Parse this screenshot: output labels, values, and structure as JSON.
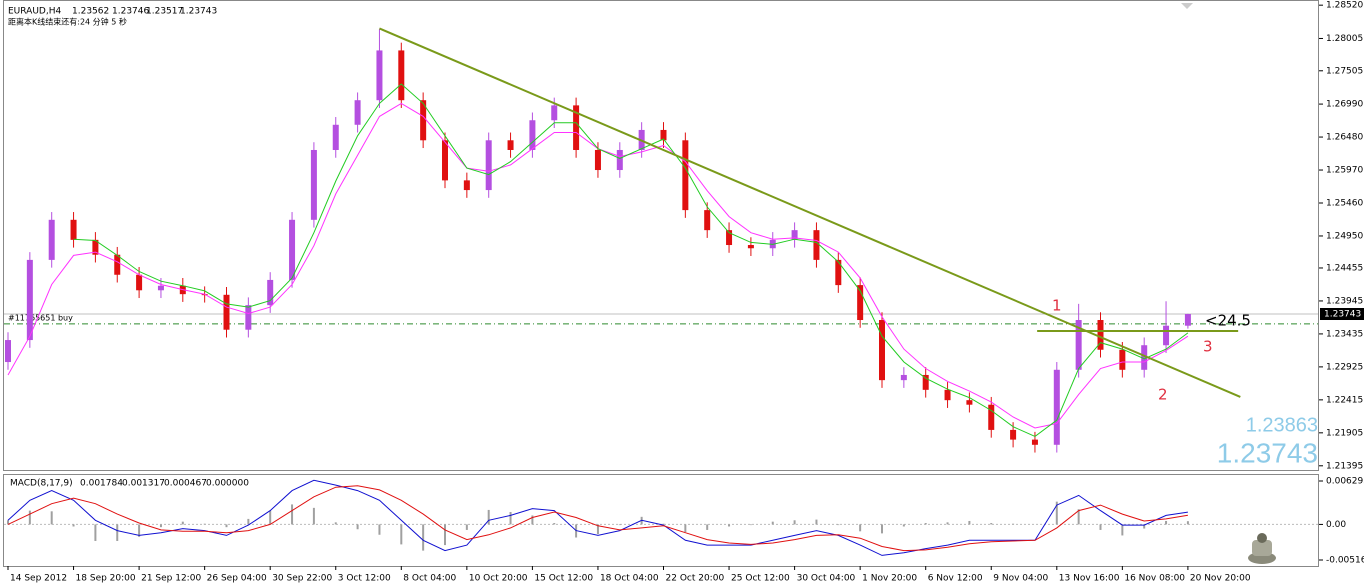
{
  "chart_data": [
    {
      "type": "candlestick",
      "title": "EURAUD,H4",
      "countdown": "距离本K线结束还有:24 分钟 5 秒",
      "open": [
        1.23,
        1.2334,
        1.2458,
        1.252,
        1.2489,
        1.2466,
        1.2435,
        1.2411,
        1.2418,
        1.2405,
        1.2404,
        1.235,
        1.2388,
        1.2427,
        1.252,
        1.2628,
        1.2667,
        1.2705,
        1.2782,
        1.2705,
        1.2643,
        1.2581,
        1.2566,
        1.2643,
        1.2628,
        1.2674,
        1.2697,
        1.2628,
        1.2597,
        1.2628,
        1.2659,
        1.2643,
        1.2535,
        1.2504,
        1.2481,
        1.2476,
        1.2489,
        1.2504,
        1.2458,
        1.2419,
        1.2365,
        1.2272,
        1.228,
        1.2257,
        1.2241,
        1.2234,
        1.2195,
        1.218,
        1.2172,
        1.2288,
        1.2365,
        1.2319,
        1.2288,
        1.2326,
        1.23562
      ],
      "high": [
        1.2346,
        1.247,
        1.2532,
        1.2532,
        1.2501,
        1.2478,
        1.2447,
        1.243,
        1.243,
        1.2417,
        1.2416,
        1.24,
        1.2439,
        1.2532,
        1.264,
        1.2679,
        1.2717,
        1.2815,
        1.2794,
        1.2717,
        1.2655,
        1.2593,
        1.2655,
        1.2655,
        1.2686,
        1.2709,
        1.2709,
        1.264,
        1.264,
        1.2671,
        1.2671,
        1.2655,
        1.2547,
        1.2516,
        1.2493,
        1.2501,
        1.2516,
        1.2516,
        1.247,
        1.2431,
        1.2377,
        1.2292,
        1.2292,
        1.2269,
        1.2253,
        1.2246,
        1.2207,
        1.2192,
        1.23,
        1.239,
        1.2377,
        1.2331,
        1.2338,
        1.2394,
        1.23746
      ],
      "low": [
        1.2288,
        1.2322,
        1.2446,
        1.2477,
        1.2454,
        1.2423,
        1.2399,
        1.2399,
        1.2393,
        1.2392,
        1.2338,
        1.2338,
        1.2376,
        1.2415,
        1.2508,
        1.2616,
        1.2655,
        1.2693,
        1.2693,
        1.2631,
        1.2569,
        1.2554,
        1.2554,
        1.2616,
        1.2616,
        1.2662,
        1.2616,
        1.2585,
        1.2585,
        1.2616,
        1.2631,
        1.2523,
        1.2492,
        1.2469,
        1.2464,
        1.2464,
        1.2477,
        1.2446,
        1.2407,
        1.2353,
        1.226,
        1.226,
        1.2245,
        1.2229,
        1.2222,
        1.2183,
        1.2168,
        1.216,
        1.216,
        1.2276,
        1.2307,
        1.2276,
        1.2276,
        1.2314,
        1.23517
      ],
      "close": [
        1.2334,
        1.2458,
        1.252,
        1.2489,
        1.2466,
        1.2435,
        1.2411,
        1.2418,
        1.2405,
        1.2404,
        1.235,
        1.2388,
        1.2427,
        1.252,
        1.2628,
        1.2667,
        1.2705,
        1.2782,
        1.2705,
        1.2643,
        1.2581,
        1.2566,
        1.2643,
        1.2628,
        1.2674,
        1.2697,
        1.2628,
        1.2597,
        1.2628,
        1.2659,
        1.2643,
        1.2535,
        1.2504,
        1.2481,
        1.2476,
        1.2489,
        1.2504,
        1.2458,
        1.2419,
        1.2365,
        1.2272,
        1.228,
        1.2257,
        1.2241,
        1.2234,
        1.2195,
        1.218,
        1.2172,
        1.2288,
        1.2365,
        1.2319,
        1.2288,
        1.2326,
        1.23562,
        1.23743
      ],
      "up_color": "#b44fe0",
      "down_color": "#e01010",
      "lines": [
        {
          "color": "#ff33ff",
          "values": [
            1.228,
            1.234,
            1.242,
            1.2465,
            1.247,
            1.2455,
            1.2435,
            1.242,
            1.2412,
            1.2405,
            1.2385,
            1.2375,
            1.2385,
            1.242,
            1.248,
            1.256,
            1.262,
            1.268,
            1.27,
            1.268,
            1.264,
            1.26,
            1.2595,
            1.2605,
            1.263,
            1.2655,
            1.2655,
            1.263,
            1.2618,
            1.2625,
            1.2635,
            1.261,
            1.2565,
            1.2525,
            1.25,
            1.249,
            1.2492,
            1.2488,
            1.247,
            1.243,
            1.237,
            1.232,
            1.229,
            1.227,
            1.2255,
            1.2238,
            1.2215,
            1.2198,
            1.2205,
            1.225,
            1.229,
            1.23,
            1.23,
            1.2318,
            1.234
          ]
        },
        {
          "color": "#22cc22",
          "values": [
            null,
            null,
            null,
            1.249,
            1.2488,
            1.2465,
            1.244,
            1.2425,
            1.2418,
            1.241,
            1.239,
            1.2385,
            1.2395,
            1.243,
            1.25,
            1.258,
            1.265,
            1.27,
            1.273,
            1.27,
            1.265,
            1.26,
            1.259,
            1.261,
            1.264,
            1.267,
            1.267,
            1.263,
            1.2615,
            1.263,
            1.2645,
            1.26,
            1.254,
            1.25,
            1.2485,
            1.2482,
            1.249,
            1.2485,
            1.2455,
            1.241,
            1.234,
            1.23,
            1.2275,
            1.2258,
            1.2245,
            1.2225,
            1.22,
            1.2185,
            1.221,
            1.229,
            1.233,
            1.232,
            1.2305,
            1.232,
            1.2345
          ]
        }
      ],
      "trendline": {
        "color": "#7a9a1a",
        "x": [
          17,
          56.4
        ],
        "y": [
          1.2816,
          1.2246
        ]
      },
      "level": {
        "color": "#7a9a1a",
        "x": [
          47.1,
          56.3
        ],
        "y": 1.2348
      },
      "order": {
        "label": "#11765651 buy",
        "price": 1.2359,
        "color": "#2e8b2e"
      },
      "annotations": [
        "1",
        "2",
        "3",
        "<24.5"
      ],
      "ask": 1.23863,
      "ylim": [
        1.2133,
        1.286
      ],
      "yticks": [
        {
          "value": 1.2852,
          "label": "1.28520"
        },
        1.28005,
        1.27505,
        {
          "value": 1.2699,
          "label": "1.26990"
        },
        {
          "value": 1.2648,
          "label": "1.26480"
        },
        {
          "value": 1.2597,
          "label": "1.25970"
        },
        {
          "value": 1.2546,
          "label": "1.25460"
        },
        {
          "value": 1.2495,
          "label": "1.24950"
        },
        1.24455,
        1.23945,
        1.23435,
        1.22925,
        1.22415,
        1.21905,
        1.21395
      ]
    },
    {
      "type": "macd",
      "title": "MACD(8,17,9)",
      "categories": [
        "14 Sep 2012",
        null,
        null,
        "18 Sep 20:00",
        null,
        null,
        "21 Sep 12:00",
        null,
        null,
        "26 Sep 04:00",
        null,
        null,
        "30 Sep 22:00",
        null,
        null,
        "3 Oct 12:00",
        null,
        null,
        "8 Oct 04:00",
        null,
        null,
        "10 Oct 20:00",
        null,
        null,
        "15 Oct 12:00",
        null,
        null,
        "18 Oct 04:00",
        null,
        null,
        "22 Oct 20:00",
        null,
        null,
        "25 Oct 12:00",
        null,
        null,
        "30 Oct 04:00",
        null,
        null,
        "1 Nov 20:00",
        null,
        null,
        "6 Nov 12:00",
        null,
        null,
        "9 Nov 04:00",
        null,
        null,
        "13 Nov 16:00",
        null,
        null,
        "16 Nov 08:00",
        null,
        null,
        "20 Nov 20:00"
      ],
      "series": [
        {
          "color": "#1010d0",
          "values": [
            0.0006,
            0.0035,
            0.0049,
            0.0035,
            0.0006,
            -0.0009,
            -0.0016,
            -0.0012,
            -0.0006,
            -0.0009,
            -0.0016,
            -0.0001,
            0.002,
            0.0049,
            0.0064,
            0.0057,
            0.0049,
            0.0035,
            0.0006,
            -0.0023,
            -0.0038,
            -0.003,
            0.0006,
            0.0013,
            0.0023,
            0.002,
            -0.0009,
            -0.0016,
            -0.0009,
            0.0006,
            -0.0001,
            -0.0023,
            -0.003,
            -0.003,
            -0.003,
            -0.0023,
            -0.0016,
            -0.0009,
            -0.0016,
            -0.003,
            -0.0045,
            -0.0041,
            -0.0035,
            -0.003,
            -0.0023,
            -0.0023,
            -0.0023,
            -0.0023,
            0.0028,
            0.0042,
            0.002,
            -0.0001,
            -0.0001,
            0.0013,
            0.001784
          ]
        },
        {
          "color": "#e01010",
          "values": [
            0,
            0.0015,
            0.003,
            0.0038,
            0.003,
            0.0015,
            0.0002,
            -0.0008,
            -0.001,
            -0.001,
            -0.0012,
            -0.0009,
            0,
            0.002,
            0.004,
            0.0054,
            0.0056,
            0.005,
            0.0035,
            0.0015,
            -0.0008,
            -0.0022,
            -0.0015,
            -0.0005,
            0.001,
            0.0018,
            0.001,
            -0.0002,
            -0.0008,
            -0.0005,
            -0.0002,
            -0.0012,
            -0.0022,
            -0.0027,
            -0.0029,
            -0.0027,
            -0.0022,
            -0.0016,
            -0.0015,
            -0.002,
            -0.0032,
            -0.0038,
            -0.0037,
            -0.0033,
            -0.0028,
            -0.0025,
            -0.0024,
            -0.0023,
            -0.0005,
            0.002,
            0.0028,
            0.0015,
            0.0005,
            0.0008,
            0.001317
          ]
        }
      ],
      "histogram": {
        "color": "#a0a0a0",
        "values": [
          0.0006,
          0.002,
          0.0019,
          -0.0003,
          -0.0024,
          -0.0024,
          -0.0018,
          -0.0004,
          0.0004,
          0.0001,
          -0.0004,
          0.0008,
          0.002,
          0.0029,
          0.0024,
          0.0003,
          -0.0007,
          -0.0015,
          -0.0029,
          -0.0038,
          -0.003,
          -0.0008,
          0.0021,
          0.0018,
          0.0013,
          0.0002,
          -0.0019,
          -0.0014,
          -0.0001,
          0.0011,
          0.0001,
          -0.0011,
          -0.0008,
          -0.0003,
          -0.0001,
          0.0004,
          0.0006,
          0.0007,
          -0.0001,
          -0.001,
          -0.0013,
          -0.0003,
          0.0002,
          0.0003,
          0.0005,
          0.0002,
          0.0001,
          0,
          0.0033,
          0.0022,
          -0.0008,
          -0.0016,
          -0.0006,
          0.0005,
          0.000467
        ]
      },
      "buffer_4": {
        "value": 0,
        "label": "0.000000"
      },
      "ylim": [
        -0.00603,
        0.00731
      ],
      "yticks": [
        0.006295,
        {
          "value": 0,
          "label": "0.00"
        },
        -0.00516
      ]
    }
  ]
}
